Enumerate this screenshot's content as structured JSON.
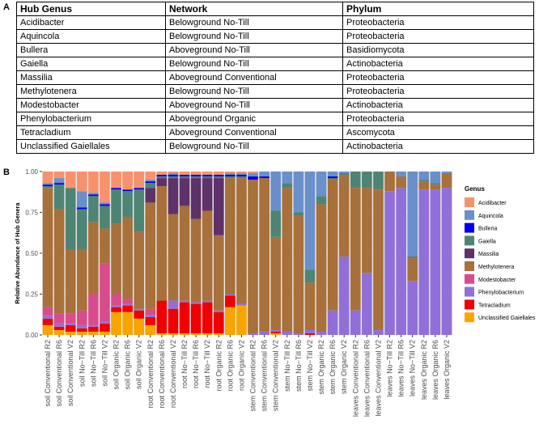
{
  "panel_a_label": "A",
  "panel_b_label": "B",
  "table": {
    "headers": [
      "Hub Genus",
      "Network",
      "Phylum"
    ],
    "rows": [
      [
        "Acidibacter",
        "Belowground No-Till",
        "Proteobacteria"
      ],
      [
        "Aquincola",
        "Belowground No-Till",
        "Proteobacteria"
      ],
      [
        "Bullera",
        "Aboveground No-Till",
        "Basidiomycota"
      ],
      [
        "Gaiella",
        "Belowground No-Till",
        "Actinobacteria"
      ],
      [
        "Massilia",
        "Aboveground Conventional",
        "Proteobacteria"
      ],
      [
        "Methylotenera",
        "Belowground No-Till",
        "Proteobacteria"
      ],
      [
        "Modestobacter",
        "Aboveground No-Till",
        "Actinobacteria"
      ],
      [
        "Phenylobacterium",
        "Aboveground Organic",
        "Proteobacteria"
      ],
      [
        "Tetracladium",
        "Aboveground Conventional",
        "Ascomycota"
      ],
      [
        "Unclassified Gaiellales",
        "Belowground No-Till",
        "Actinobacteria"
      ]
    ]
  },
  "chart_data": {
    "type": "bar",
    "stacked": true,
    "title": "",
    "xlabel": "",
    "ylabel": "Relative Abundance of Hub Genera",
    "ylim": [
      0,
      1
    ],
    "yticks": [
      "0.00",
      "0.25",
      "0.50",
      "0.75",
      "1.00"
    ],
    "legend_title": "Genus",
    "legend_position": "right",
    "series": [
      {
        "name": "Acidibacter",
        "color": "#F8926C"
      },
      {
        "name": "Aquincola",
        "color": "#6A8FCB"
      },
      {
        "name": "Bulleria",
        "color": "#0000F0"
      },
      {
        "name": "Gaiella",
        "color": "#4E8474"
      },
      {
        "name": "Massilia",
        "color": "#5E3268"
      },
      {
        "name": "Methylotenera",
        "color": "#A8703A"
      },
      {
        "name": "Modestobacter",
        "color": "#D84C8C"
      },
      {
        "name": "Phenylobacterium",
        "color": "#9070D8"
      },
      {
        "name": "Tetracladium",
        "color": "#F00000"
      },
      {
        "name": "Unclassified Gaiellales",
        "color": "#F8A500"
      }
    ],
    "stack_order_bottom_to_top": [
      "Unclassified Gaiellales",
      "Tetracladium",
      "Phenylobacterium",
      "Modestobacter",
      "Methylotenera",
      "Massilia",
      "Gaiella",
      "Bulleria",
      "Aquincola",
      "Acidibacter"
    ],
    "categories": [
      "soil Conventional R2",
      "soil Conventional R6",
      "soil Conventional V2",
      "soil No−Till R2",
      "soil No−Till R6",
      "soil No−Till V2",
      "soil Organic R2",
      "soil Organic R6",
      "soil Organic V2",
      "root Conventional R2",
      "root Conventional R6",
      "root Conventional V2",
      "root No−Till R2",
      "root No−Till R6",
      "root No−Till V2",
      "root Organic R2",
      "root Organic R6",
      "root Organic V2",
      "stem Conventional R2",
      "stem Conventional R6",
      "stem Conventional V2",
      "stem No−Till R2",
      "stem No−Till R6",
      "stem No−Till V2",
      "stem Organic R2",
      "stem Organic R6",
      "stem Organic V2",
      "leaves Conventional R2",
      "leaves Conventional R6",
      "leaves Conventional V2",
      "leaves No−Till R2",
      "leaves No−Till R6",
      "leaves No−Till V2",
      "leaves Organic R2",
      "leaves Organic R6",
      "leaves Organic V2"
    ],
    "values": [
      [
        0.07,
        0.01,
        0.01,
        0.01,
        0.0,
        0.73,
        0.05,
        0.02,
        0.04,
        0.06
      ],
      [
        0.04,
        0.03,
        0.01,
        0.15,
        0.0,
        0.64,
        0.06,
        0.02,
        0.02,
        0.03
      ],
      [
        0.1,
        0.0,
        0.0,
        0.38,
        0.0,
        0.39,
        0.06,
        0.01,
        0.04,
        0.02
      ],
      [
        0.12,
        0.1,
        0.01,
        0.25,
        0.0,
        0.37,
        0.09,
        0.02,
        0.02,
        0.02
      ],
      [
        0.13,
        0.01,
        0.01,
        0.16,
        0.0,
        0.44,
        0.19,
        0.01,
        0.03,
        0.02
      ],
      [
        0.19,
        0.01,
        0.01,
        0.14,
        0.0,
        0.21,
        0.36,
        0.01,
        0.05,
        0.02
      ],
      [
        0.1,
        0.0,
        0.01,
        0.21,
        0.0,
        0.43,
        0.07,
        0.01,
        0.03,
        0.14
      ],
      [
        0.11,
        0.0,
        0.01,
        0.16,
        0.0,
        0.5,
        0.03,
        0.01,
        0.04,
        0.14
      ],
      [
        0.1,
        0.0,
        0.01,
        0.26,
        0.0,
        0.47,
        0.0,
        0.01,
        0.05,
        0.1
      ],
      [
        0.05,
        0.01,
        0.01,
        0.03,
        0.09,
        0.65,
        0.04,
        0.01,
        0.05,
        0.06
      ],
      [
        0.02,
        0.0,
        0.01,
        0.01,
        0.05,
        0.7,
        0.0,
        0.0,
        0.2,
        0.01
      ],
      [
        0.01,
        0.01,
        0.01,
        0.01,
        0.22,
        0.53,
        0.0,
        0.05,
        0.15,
        0.01
      ],
      [
        0.02,
        0.0,
        0.01,
        0.01,
        0.17,
        0.58,
        0.0,
        0.01,
        0.19,
        0.01
      ],
      [
        0.02,
        0.0,
        0.01,
        0.01,
        0.25,
        0.51,
        0.0,
        0.01,
        0.18,
        0.01
      ],
      [
        0.02,
        0.0,
        0.01,
        0.01,
        0.2,
        0.55,
        0.0,
        0.01,
        0.19,
        0.01
      ],
      [
        0.02,
        0.0,
        0.01,
        0.01,
        0.35,
        0.46,
        0.0,
        0.01,
        0.13,
        0.01
      ],
      [
        0.01,
        0.01,
        0.01,
        0.01,
        0.0,
        0.71,
        0.0,
        0.01,
        0.07,
        0.17
      ],
      [
        0.01,
        0.01,
        0.01,
        0.01,
        0.0,
        0.77,
        0.0,
        0.01,
        0.0,
        0.18
      ],
      [
        0.01,
        0.02,
        0.02,
        0.0,
        0.0,
        0.94,
        0.0,
        0.01,
        0.0,
        0.0
      ],
      [
        0.0,
        0.03,
        0.01,
        0.0,
        0.0,
        0.94,
        0.0,
        0.02,
        0.0,
        0.0
      ],
      [
        0.0,
        0.24,
        0.0,
        0.16,
        0.0,
        0.57,
        0.0,
        0.01,
        0.01,
        0.01
      ],
      [
        0.0,
        0.07,
        0.0,
        0.03,
        0.0,
        0.88,
        0.0,
        0.02,
        0.0,
        0.0
      ],
      [
        0.0,
        0.25,
        0.0,
        0.02,
        0.0,
        0.72,
        0.0,
        0.01,
        0.0,
        0.0
      ],
      [
        0.0,
        0.6,
        0.0,
        0.08,
        0.0,
        0.29,
        0.0,
        0.02,
        0.01,
        0.0
      ],
      [
        0.0,
        0.15,
        0.0,
        0.05,
        0.0,
        0.78,
        0.0,
        0.02,
        0.0,
        0.0
      ],
      [
        0.0,
        0.03,
        0.01,
        0.01,
        0.0,
        0.8,
        0.0,
        0.15,
        0.0,
        0.0
      ],
      [
        0.0,
        0.01,
        0.0,
        0.01,
        0.0,
        0.5,
        0.0,
        0.48,
        0.0,
        0.0
      ],
      [
        0.0,
        0.0,
        0.0,
        0.1,
        0.0,
        0.75,
        0.0,
        0.15,
        0.0,
        0.0
      ],
      [
        0.0,
        0.0,
        0.0,
        0.1,
        0.0,
        0.52,
        0.0,
        0.38,
        0.0,
        0.0
      ],
      [
        0.0,
        0.0,
        0.0,
        0.11,
        0.0,
        0.86,
        0.0,
        0.03,
        0.0,
        0.0
      ],
      [
        0.0,
        0.0,
        0.0,
        0.0,
        0.0,
        0.12,
        0.0,
        0.88,
        0.0,
        0.0
      ],
      [
        0.0,
        0.03,
        0.0,
        0.0,
        0.0,
        0.07,
        0.0,
        0.9,
        0.0,
        0.0
      ],
      [
        0.0,
        0.52,
        0.0,
        0.01,
        0.0,
        0.14,
        0.0,
        0.33,
        0.0,
        0.0
      ],
      [
        0.0,
        0.05,
        0.0,
        0.01,
        0.0,
        0.05,
        0.0,
        0.89,
        0.0,
        0.0
      ],
      [
        0.0,
        0.07,
        0.0,
        0.01,
        0.0,
        0.03,
        0.0,
        0.89,
        0.0,
        0.0
      ],
      [
        0.0,
        0.01,
        0.0,
        0.0,
        0.0,
        0.09,
        0.0,
        0.9,
        0.0,
        0.0
      ]
    ]
  }
}
